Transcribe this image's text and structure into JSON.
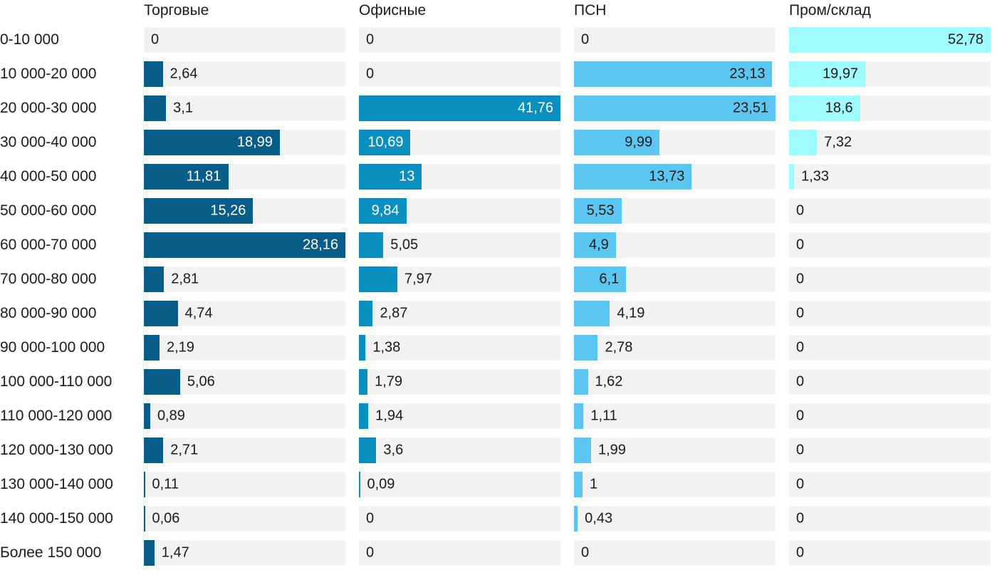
{
  "chart_data": {
    "type": "bar",
    "orientation": "horizontal",
    "layout": "small-multiples-4-columns",
    "grid": false,
    "scaling": "each column normalized to its own max value",
    "track_color": "#f2f2f2",
    "text_color": "#1b1b1b",
    "categories": [
      "0-10 000",
      "10 000-20 000",
      "20 000-30 000",
      "30 000-40 000",
      "40 000-50 000",
      "50 000-60 000",
      "60 000-70 000",
      "70 000-80 000",
      "80 000-90 000",
      "90 000-100 000",
      "100 000-110 000",
      "110 000-120 000",
      "120 000-130 000",
      "130 000-140 000",
      "140 000-150 000",
      "Более 150 000"
    ],
    "series": [
      {
        "name": "Торговые",
        "color": "#085e88",
        "inside_label_color": "#ffffff",
        "values": [
          0,
          2.64,
          3.1,
          18.99,
          11.81,
          15.26,
          28.16,
          2.81,
          4.74,
          2.19,
          5.06,
          0.89,
          2.71,
          0.11,
          0.06,
          1.47
        ],
        "labels": [
          "0",
          "2,64",
          "3,1",
          "18,99",
          "11,81",
          "15,26",
          "28,16",
          "2,81",
          "4,74",
          "2,19",
          "5,06",
          "0,89",
          "2,71",
          "0,11",
          "0,06",
          "1,47"
        ]
      },
      {
        "name": "Офисные",
        "color": "#0a90bf",
        "inside_label_color": "#ffffff",
        "values": [
          0,
          0,
          41.76,
          10.69,
          13,
          9.84,
          5.05,
          7.97,
          2.87,
          1.38,
          1.79,
          1.94,
          3.6,
          0.09,
          0,
          0
        ],
        "labels": [
          "0",
          "0",
          "41,76",
          "10,69",
          "13",
          "9,84",
          "5,05",
          "7,97",
          "2,87",
          "1,38",
          "1,79",
          "1,94",
          "3,6",
          "0,09",
          "0",
          "0"
        ]
      },
      {
        "name": "ПСН",
        "color": "#5cc6f2",
        "inside_label_color": "#1b1b1b",
        "values": [
          0,
          23.13,
          23.51,
          9.99,
          13.73,
          5.53,
          4.9,
          6.1,
          4.19,
          2.78,
          1.62,
          1.11,
          1.99,
          1,
          0.43,
          0
        ],
        "labels": [
          "0",
          "23,13",
          "23,51",
          "9,99",
          "13,73",
          "5,53",
          "4,9",
          "6,1",
          "4,19",
          "2,78",
          "1,62",
          "1,11",
          "1,99",
          "1",
          "0,43",
          "0"
        ]
      },
      {
        "name": "Пром/склад",
        "color": "#9efcfd",
        "inside_label_color": "#1b1b1b",
        "values": [
          52.78,
          19.97,
          18.6,
          7.32,
          1.33,
          0,
          0,
          0,
          0,
          0,
          0,
          0,
          0,
          0,
          0,
          0
        ],
        "labels": [
          "52,78",
          "19,97",
          "18,6",
          "7,32",
          "1,33",
          "0",
          "0",
          "0",
          "0",
          "0",
          "0",
          "0",
          "0",
          "0",
          "0",
          "0"
        ]
      }
    ]
  }
}
